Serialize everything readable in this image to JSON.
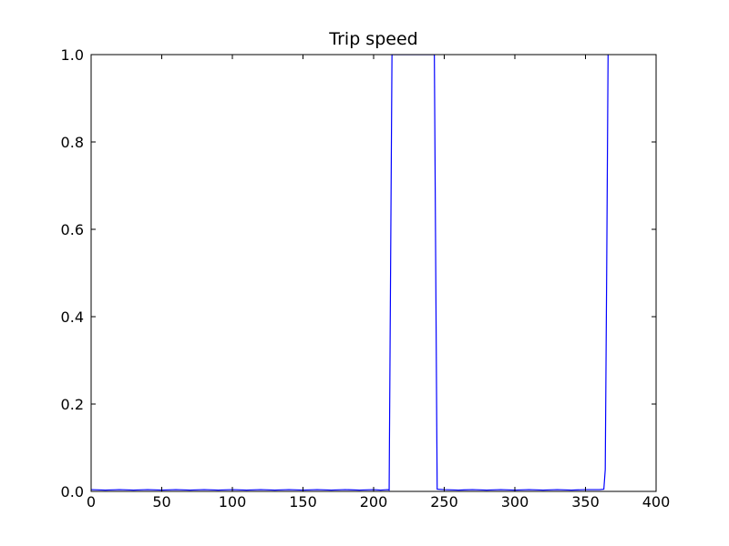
{
  "chart_data": {
    "type": "line",
    "title": "Trip speed",
    "xlabel": "",
    "ylabel": "",
    "xlim": [
      0,
      400
    ],
    "ylim": [
      0,
      1.0
    ],
    "x_ticks": [
      "0",
      "50",
      "100",
      "150",
      "200",
      "250",
      "300",
      "350",
      "400"
    ],
    "y_ticks": [
      "0.0",
      "0.2",
      "0.4",
      "0.6",
      "0.8",
      "1.0"
    ],
    "grid": false,
    "legend": "none",
    "series": [
      {
        "color": "#0000ff",
        "x": [
          0,
          10,
          20,
          30,
          40,
          50,
          60,
          70,
          80,
          90,
          100,
          110,
          120,
          130,
          140,
          150,
          160,
          170,
          180,
          190,
          200,
          205,
          210,
          211,
          212,
          213,
          243,
          244,
          245,
          250,
          260,
          270,
          280,
          290,
          300,
          310,
          320,
          330,
          340,
          350,
          360,
          363,
          364,
          365,
          366
        ],
        "y": [
          0.004,
          0.003,
          0.004,
          0.003,
          0.004,
          0.003,
          0.004,
          0.003,
          0.004,
          0.003,
          0.004,
          0.003,
          0.004,
          0.003,
          0.004,
          0.003,
          0.004,
          0.003,
          0.004,
          0.003,
          0.004,
          0.003,
          0.004,
          0.003,
          0.5,
          1.0,
          1.0,
          0.5,
          0.005,
          0.004,
          0.003,
          0.004,
          0.003,
          0.004,
          0.003,
          0.004,
          0.003,
          0.004,
          0.003,
          0.004,
          0.004,
          0.005,
          0.05,
          0.5,
          1.0
        ]
      }
    ]
  }
}
